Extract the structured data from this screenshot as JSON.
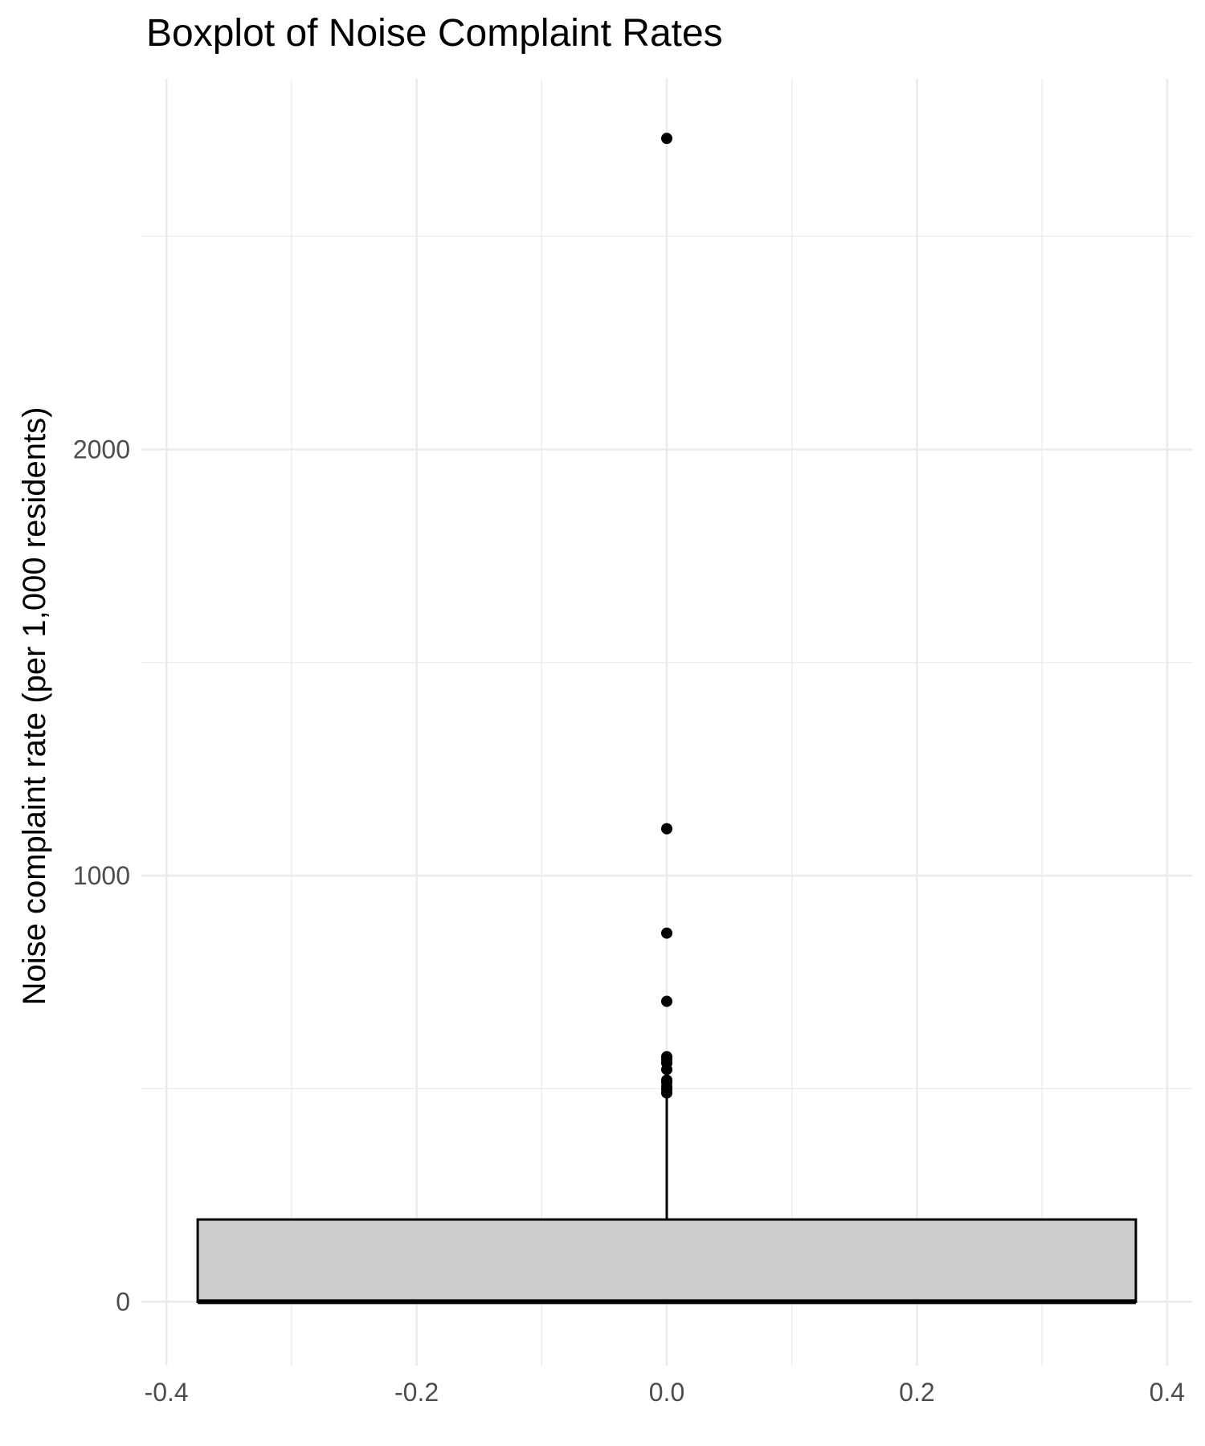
{
  "chart_data": {
    "type": "boxplot",
    "title": "Boxplot of Noise Complaint Rates",
    "xlabel": "",
    "ylabel": "Noise complaint rate (per 1,000 residents)",
    "xlim": [
      -0.42,
      0.42
    ],
    "ylim": [
      -150,
      2870
    ],
    "x_ticks": [
      -0.4,
      -0.2,
      0.0,
      0.2,
      0.4
    ],
    "x_tick_labels": [
      "-0.4",
      "-0.2",
      "0.0",
      "0.2",
      "0.4"
    ],
    "y_ticks": [
      0,
      1000,
      2000
    ],
    "y_tick_labels": [
      "0",
      "1000",
      "2000"
    ],
    "grid": true,
    "box": {
      "x": 0.0,
      "x_range": [
        -0.375,
        0.375
      ],
      "q1": 0,
      "median": 0,
      "q3": 193,
      "whisker_low": 0,
      "whisker_high": 485
    },
    "outliers": [
      2730,
      1110,
      865,
      705,
      515,
      505,
      498,
      490,
      520,
      560,
      568,
      575,
      545
    ],
    "colors": {
      "box_fill": "#cccccc",
      "line": "#000000",
      "grid": "#ebebeb"
    }
  }
}
